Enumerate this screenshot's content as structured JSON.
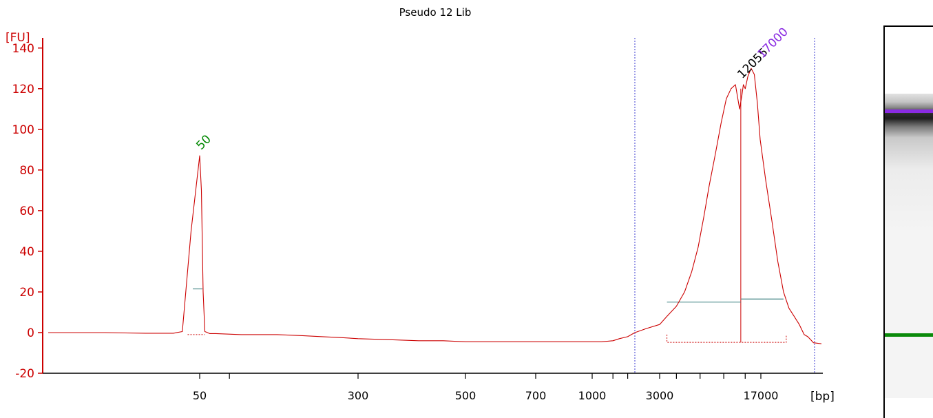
{
  "chart_data": {
    "type": "line",
    "title": "Pseudo 12 Lib",
    "ylabel": "[FU]",
    "xlabel": "[bp]",
    "ylim": [
      -20,
      145
    ],
    "y_ticks": [
      "140",
      "120",
      "100",
      "80",
      "60",
      "40",
      "20",
      "0",
      "-20"
    ],
    "x_tick_labels": [
      "50",
      "300",
      "500",
      "700",
      "1000",
      "3000",
      "17000"
    ],
    "grid": false,
    "series": [
      {
        "x": [
          35,
          40,
          44,
          47,
          48,
          49,
          50,
          51,
          52,
          53,
          54,
          56,
          60,
          80,
          120,
          160,
          200,
          250,
          300,
          350,
          400,
          450,
          500,
          550,
          600,
          650,
          700,
          800,
          900,
          1000,
          1200,
          1500,
          1700,
          2000,
          2300,
          2600,
          3000,
          3400,
          4000,
          4600,
          5200,
          5800,
          6400,
          7000,
          7800,
          8600,
          9400,
          10200,
          11000,
          11800,
          12300,
          12600,
          13000,
          13600,
          14400,
          15200,
          16000,
          16800,
          17600,
          18400,
          19200,
          20000,
          20800,
          21600,
          22400,
          23200,
          23800,
          24300,
          24800,
          25500
        ],
        "y": [
          0,
          0,
          -0.3,
          -0.3,
          0.5,
          50,
          87,
          70,
          20,
          0.5,
          0.2,
          -0.5,
          -0.5,
          -1,
          -1,
          -1.5,
          -2,
          -2.5,
          -3,
          -3.5,
          -4,
          -4,
          -4.5,
          -4.5,
          -4.5,
          -4.5,
          -4.5,
          -4.5,
          -4.5,
          -4.5,
          -4.5,
          -4,
          -3,
          -2,
          0,
          2,
          4,
          8,
          13,
          20,
          30,
          42,
          57,
          72,
          88,
          103,
          115,
          120,
          122,
          110,
          117,
          122,
          120,
          126,
          130,
          127,
          113,
          95,
          75,
          55,
          35,
          20,
          12,
          8,
          4,
          -1,
          -2,
          -3.5,
          -5,
          -5.5
        ]
      }
    ],
    "annotations": [
      {
        "text": "50",
        "x": 50,
        "y": 87,
        "color": "#008800"
      },
      {
        "text": "12055",
        "x": 12055,
        "y": 122,
        "color": "#000000"
      },
      {
        "text": "17000",
        "x": 17000,
        "y": 132,
        "color": "#8a2be2"
      }
    ],
    "vertical_markers": [
      2300,
      25000
    ]
  }
}
